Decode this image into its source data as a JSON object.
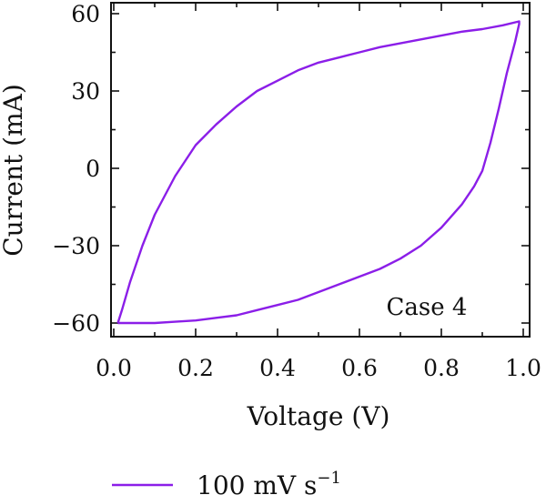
{
  "chart_data": {
    "type": "line",
    "xlabel": "Voltage (V)",
    "ylabel": "Current (mA)",
    "xlim": [
      0.0,
      1.0
    ],
    "ylim": [
      -65,
      60
    ],
    "xticks": [
      0.0,
      0.2,
      0.4,
      0.6,
      0.8,
      1.0
    ],
    "xtick_labels": [
      "0.0",
      "0.2",
      "0.4",
      "0.6",
      "0.8",
      "1.0"
    ],
    "yticks": [
      -60,
      -30,
      0,
      30,
      60
    ],
    "ytick_labels": [
      "−60",
      "−30",
      "0",
      "30",
      "60"
    ],
    "annotation": "Case 4",
    "legend": {
      "placement": "bottom",
      "label_main": "100 mV s",
      "label_sup": "−1"
    },
    "series": [
      {
        "name": "100 mV s−1",
        "color": "#8b1ee8",
        "x": [
          0.01,
          0.02,
          0.04,
          0.07,
          0.1,
          0.15,
          0.2,
          0.25,
          0.3,
          0.35,
          0.4,
          0.45,
          0.5,
          0.55,
          0.6,
          0.65,
          0.7,
          0.75,
          0.8,
          0.85,
          0.9,
          0.95,
          0.99,
          0.99,
          0.98,
          0.96,
          0.94,
          0.92,
          0.9,
          0.88,
          0.85,
          0.8,
          0.75,
          0.7,
          0.65,
          0.6,
          0.55,
          0.5,
          0.45,
          0.4,
          0.35,
          0.3,
          0.25,
          0.2,
          0.15,
          0.1,
          0.07,
          0.04,
          0.02,
          0.01,
          0.01
        ],
        "y": [
          -60,
          -55,
          -44,
          -30,
          -18,
          -3,
          9,
          17,
          24,
          30,
          34,
          38,
          41,
          43,
          45,
          47,
          48.5,
          50,
          51.5,
          53,
          54,
          55.5,
          57,
          56,
          49,
          37,
          23,
          10,
          -1,
          -7,
          -14,
          -23,
          -30,
          -35,
          -39,
          -42,
          -45,
          -48,
          -51,
          -53,
          -55,
          -57,
          -58,
          -59,
          -59.5,
          -60,
          -60,
          -60,
          -60,
          -60,
          -60
        ]
      }
    ]
  }
}
